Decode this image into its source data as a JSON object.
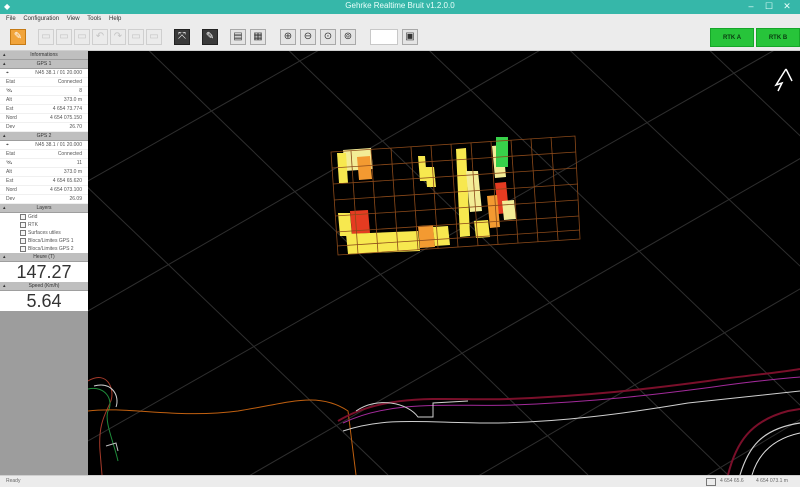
{
  "titlebar": {
    "title": "Gehrke Realtime Bruit v1.2.0.0",
    "minimize": "–",
    "maximize": "☐",
    "close": "✕"
  },
  "menu": [
    "File",
    "Configuration",
    "View",
    "Tools",
    "Help"
  ],
  "toolbar": {
    "buttons": [
      {
        "icon": "edit-icon",
        "state": "active"
      },
      {
        "icon": "new-icon",
        "state": "disabled"
      },
      {
        "icon": "open-icon",
        "state": "disabled"
      },
      {
        "icon": "save-icon",
        "state": "disabled"
      },
      {
        "icon": "undo-icon",
        "state": "disabled"
      },
      {
        "icon": "redo-icon",
        "state": "disabled"
      },
      {
        "icon": "print-icon",
        "state": "disabled"
      },
      {
        "icon": "fullscreen-icon",
        "state": "normal"
      },
      {
        "icon": "draw-icon",
        "state": "normal"
      },
      {
        "icon": "window-icon",
        "state": "normal"
      },
      {
        "icon": "grid-icon",
        "state": "normal"
      },
      {
        "icon": "zoom-in-icon",
        "state": "normal"
      },
      {
        "icon": "zoom-out-icon",
        "state": "normal"
      },
      {
        "icon": "zoom-fit-icon",
        "state": "normal"
      },
      {
        "icon": "zoom-extent-icon",
        "state": "normal"
      },
      {
        "icon": "layout-icon",
        "state": "normal"
      }
    ],
    "right_buttons": [
      "RTK A",
      "RTK B"
    ]
  },
  "sidebar": {
    "info_title": "Informations",
    "gps1": {
      "title": "GPS 1",
      "rows": [
        {
          "k": "⌖",
          "v": "N45 38.1 / 01 20.000"
        },
        {
          "k": "Etat",
          "v": "Connected"
        },
        {
          "k": "🛰",
          "v": "8"
        },
        {
          "k": "Alt",
          "v": "373.0 m"
        },
        {
          "k": "Est",
          "v": "4 654 73.774"
        },
        {
          "k": "Nord",
          "v": "4 654 075.150"
        },
        {
          "k": "Dev",
          "v": "26.70"
        }
      ]
    },
    "gps2": {
      "title": "GPS 2",
      "rows": [
        {
          "k": "⌖",
          "v": "N45 38.1 / 01 20.000"
        },
        {
          "k": "Etat",
          "v": "Connected"
        },
        {
          "k": "🛰",
          "v": "11"
        },
        {
          "k": "Alt",
          "v": "373.0 m"
        },
        {
          "k": "Est",
          "v": "4 654 65.620"
        },
        {
          "k": "Nord",
          "v": "4 654 073.100"
        },
        {
          "k": "Dev",
          "v": "26.09"
        }
      ]
    },
    "layers": {
      "title": "Layers",
      "items": [
        "Grid",
        "RTK",
        "Surfaces utiles",
        "Blocs/Limites GPS 1",
        "Blocs/Limites GPS 2"
      ]
    },
    "metric1": {
      "title": "Heure (T)",
      "value": "147.27"
    },
    "metric2": {
      "title": "Speed (Km/h)",
      "value": "5.64"
    }
  },
  "statusbar": {
    "left": "Ready",
    "coords1": "4 654 65.6",
    "coords2": "4 654 073.1 m"
  },
  "colors": {
    "title_bg": "#36b7a9",
    "rtk_green": "#27c43a",
    "grid_line": "#8c4a1a",
    "cell_yellow": "#f7e84f",
    "cell_pale": "#f3ec96",
    "cell_orange": "#f39a31",
    "cell_red": "#e53b21",
    "cell_green": "#38d14a"
  }
}
